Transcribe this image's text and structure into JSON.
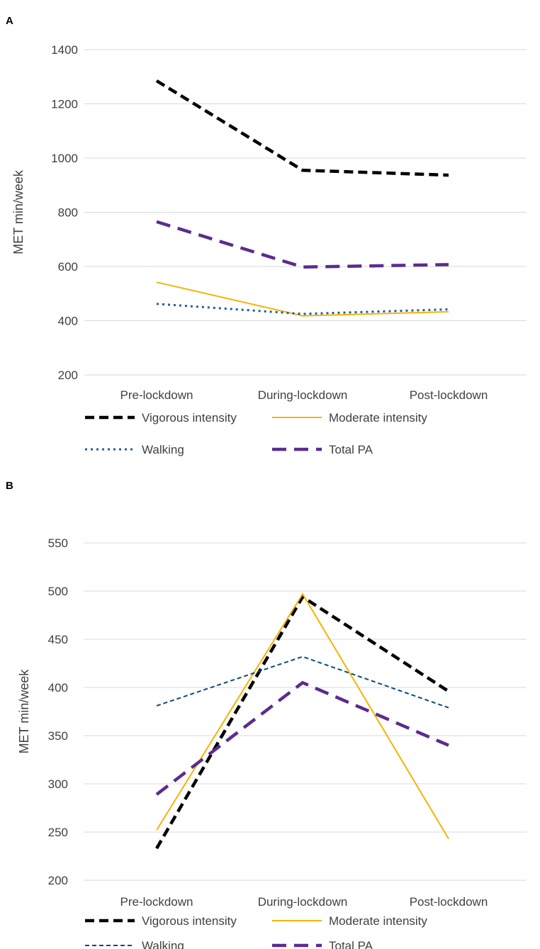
{
  "chart_data": [
    {
      "panel": "A",
      "type": "line",
      "title": "",
      "xlabel": "",
      "ylabel": "MET min/week",
      "ylim": [
        200,
        1400
      ],
      "yticks": [
        200,
        400,
        600,
        800,
        1000,
        1200,
        1400
      ],
      "grid": true,
      "legend_position": "bottom",
      "categories": [
        "Pre-lockdown",
        "During-lockdown",
        "Post-lockdown"
      ],
      "series": [
        {
          "name": "Vigorous intensity",
          "values": [
            1285,
            955,
            937
          ],
          "color": "#000000",
          "style": "dash-heavy"
        },
        {
          "name": "Moderate intensity",
          "values": [
            542,
            418,
            433
          ],
          "color": "#f4b400",
          "style": "solid"
        },
        {
          "name": "Walking",
          "values": [
            462,
            425,
            442
          ],
          "color": "#1f5f9e",
          "style": "dotted"
        },
        {
          "name": "Total PA",
          "values": [
            765,
            598,
            607
          ],
          "color": "#5b2c8f",
          "style": "long-dash"
        }
      ]
    },
    {
      "panel": "B",
      "type": "line",
      "title": "",
      "xlabel": "",
      "ylabel": "MET min/week",
      "ylim": [
        200,
        550
      ],
      "yticks": [
        200,
        250,
        300,
        350,
        400,
        450,
        500,
        550
      ],
      "grid": true,
      "legend_position": "bottom",
      "categories": [
        "Pre-lockdown",
        "During-lockdown",
        "Post-lockdown"
      ],
      "series": [
        {
          "name": "Vigorous intensity",
          "values": [
            233,
            494,
            396
          ],
          "color": "#000000",
          "style": "dash-heavy"
        },
        {
          "name": "Moderate intensity",
          "values": [
            252,
            497,
            243
          ],
          "color": "#f4b400",
          "style": "solid"
        },
        {
          "name": "Walking",
          "values": [
            381,
            432,
            379
          ],
          "color": "#0b4a7a",
          "style": "short-dash"
        },
        {
          "name": "Total PA",
          "values": [
            289,
            405,
            340
          ],
          "color": "#5b2c8f",
          "style": "long-dash"
        }
      ]
    }
  ]
}
